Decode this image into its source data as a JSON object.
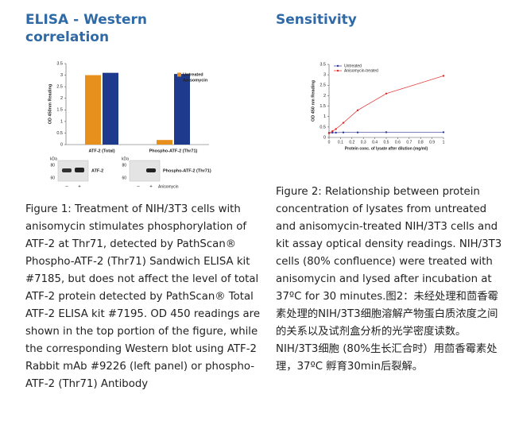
{
  "left": {
    "heading": "ELISA - Western correlation",
    "caption": "Figure 1: Treatment of NIH/3T3 cells with anisomycin stimulates phosphorylation of ATF-2 at Thr71, detected by PathScan® Phospho-ATF-2 (Thr71) Sandwich ELISA kit #7185, but does not affect the level of total ATF-2 protein detected by PathScan® Total ATF-2 ELISA kit #7195. OD 450 readings are shown in the top portion of the figure, while the corresponding Western blot using ATF-2 Rabbit mAb #9226 (left panel) or phospho-ATF-2 (Thr71) Antibody"
  },
  "right": {
    "heading": "Sensitivity",
    "caption": "Figure 2: Relationship between protein concentration of lysates from untreated and anisomycin-treated NIH/3T3 cells and kit assay optical density readings. NIH/3T3 cells (80% confluence) were treated with anisomycin and lysed after incubation at 37ºC for 30 minutes.图2：未经处理和茴香霉素处理的NIH/3T3细胞溶解产物蛋白质浓度之间的关系以及试剂盒分析的光学密度读数。NIH/3T3细胞 (80%生长汇合时）用茴香霉素处理，37ºC 孵育30min后裂解。"
  },
  "blots": [
    {
      "unit": "kDa",
      "markers": [
        "80",
        "60"
      ],
      "label": "ATF-2",
      "lanes": [
        "–",
        "+"
      ]
    },
    {
      "unit": "kDa",
      "markers": [
        "80",
        "60"
      ],
      "label": "Phospho-ATF-2 (Thr71)",
      "lanes": [
        "–",
        "+"
      ],
      "treatment": "Anisomycin"
    }
  ],
  "chart_data": [
    {
      "type": "bar",
      "y_label": "OD 450nm Reading",
      "categories": [
        "ATF-2 (Total)",
        "Phospho-ATF-2 (Thr71)"
      ],
      "series": [
        {
          "name": "Untreated",
          "color": "#e8901e",
          "values": [
            3.0,
            0.2
          ]
        },
        {
          "name": "Anisomycin",
          "color": "#1e3a8c",
          "values": [
            3.1,
            3.05
          ]
        }
      ],
      "ylim": [
        0,
        3.5
      ],
      "yticks": [
        0,
        0.5,
        1,
        1.5,
        2,
        2.5,
        3,
        3.5
      ],
      "legend": "top-right"
    },
    {
      "type": "line",
      "x_label": "Protein conc. of lysate after dilution (mg/ml)",
      "y_label": "OD 450 nm Reading",
      "x": [
        0,
        0.03,
        0.06,
        0.125,
        0.25,
        0.5,
        1
      ],
      "series": [
        {
          "name": "Untreated",
          "color": "#2b3a9a",
          "values": [
            0.22,
            0.23,
            0.23,
            0.24,
            0.24,
            0.25,
            0.25
          ]
        },
        {
          "name": "Anisomycin-treated",
          "color": "#e02a2a",
          "values": [
            0.2,
            0.3,
            0.4,
            0.7,
            1.3,
            2.1,
            2.95
          ]
        }
      ],
      "xlim": [
        0,
        1
      ],
      "xticks": [
        0,
        0.1,
        0.2,
        0.3,
        0.4,
        0.5,
        0.6,
        0.7,
        0.8,
        0.9,
        1
      ],
      "ylim": [
        0,
        3.5
      ],
      "yticks": [
        0,
        0.5,
        1,
        1.5,
        2,
        2.5,
        3,
        3.5
      ],
      "legend": "top-left"
    }
  ]
}
